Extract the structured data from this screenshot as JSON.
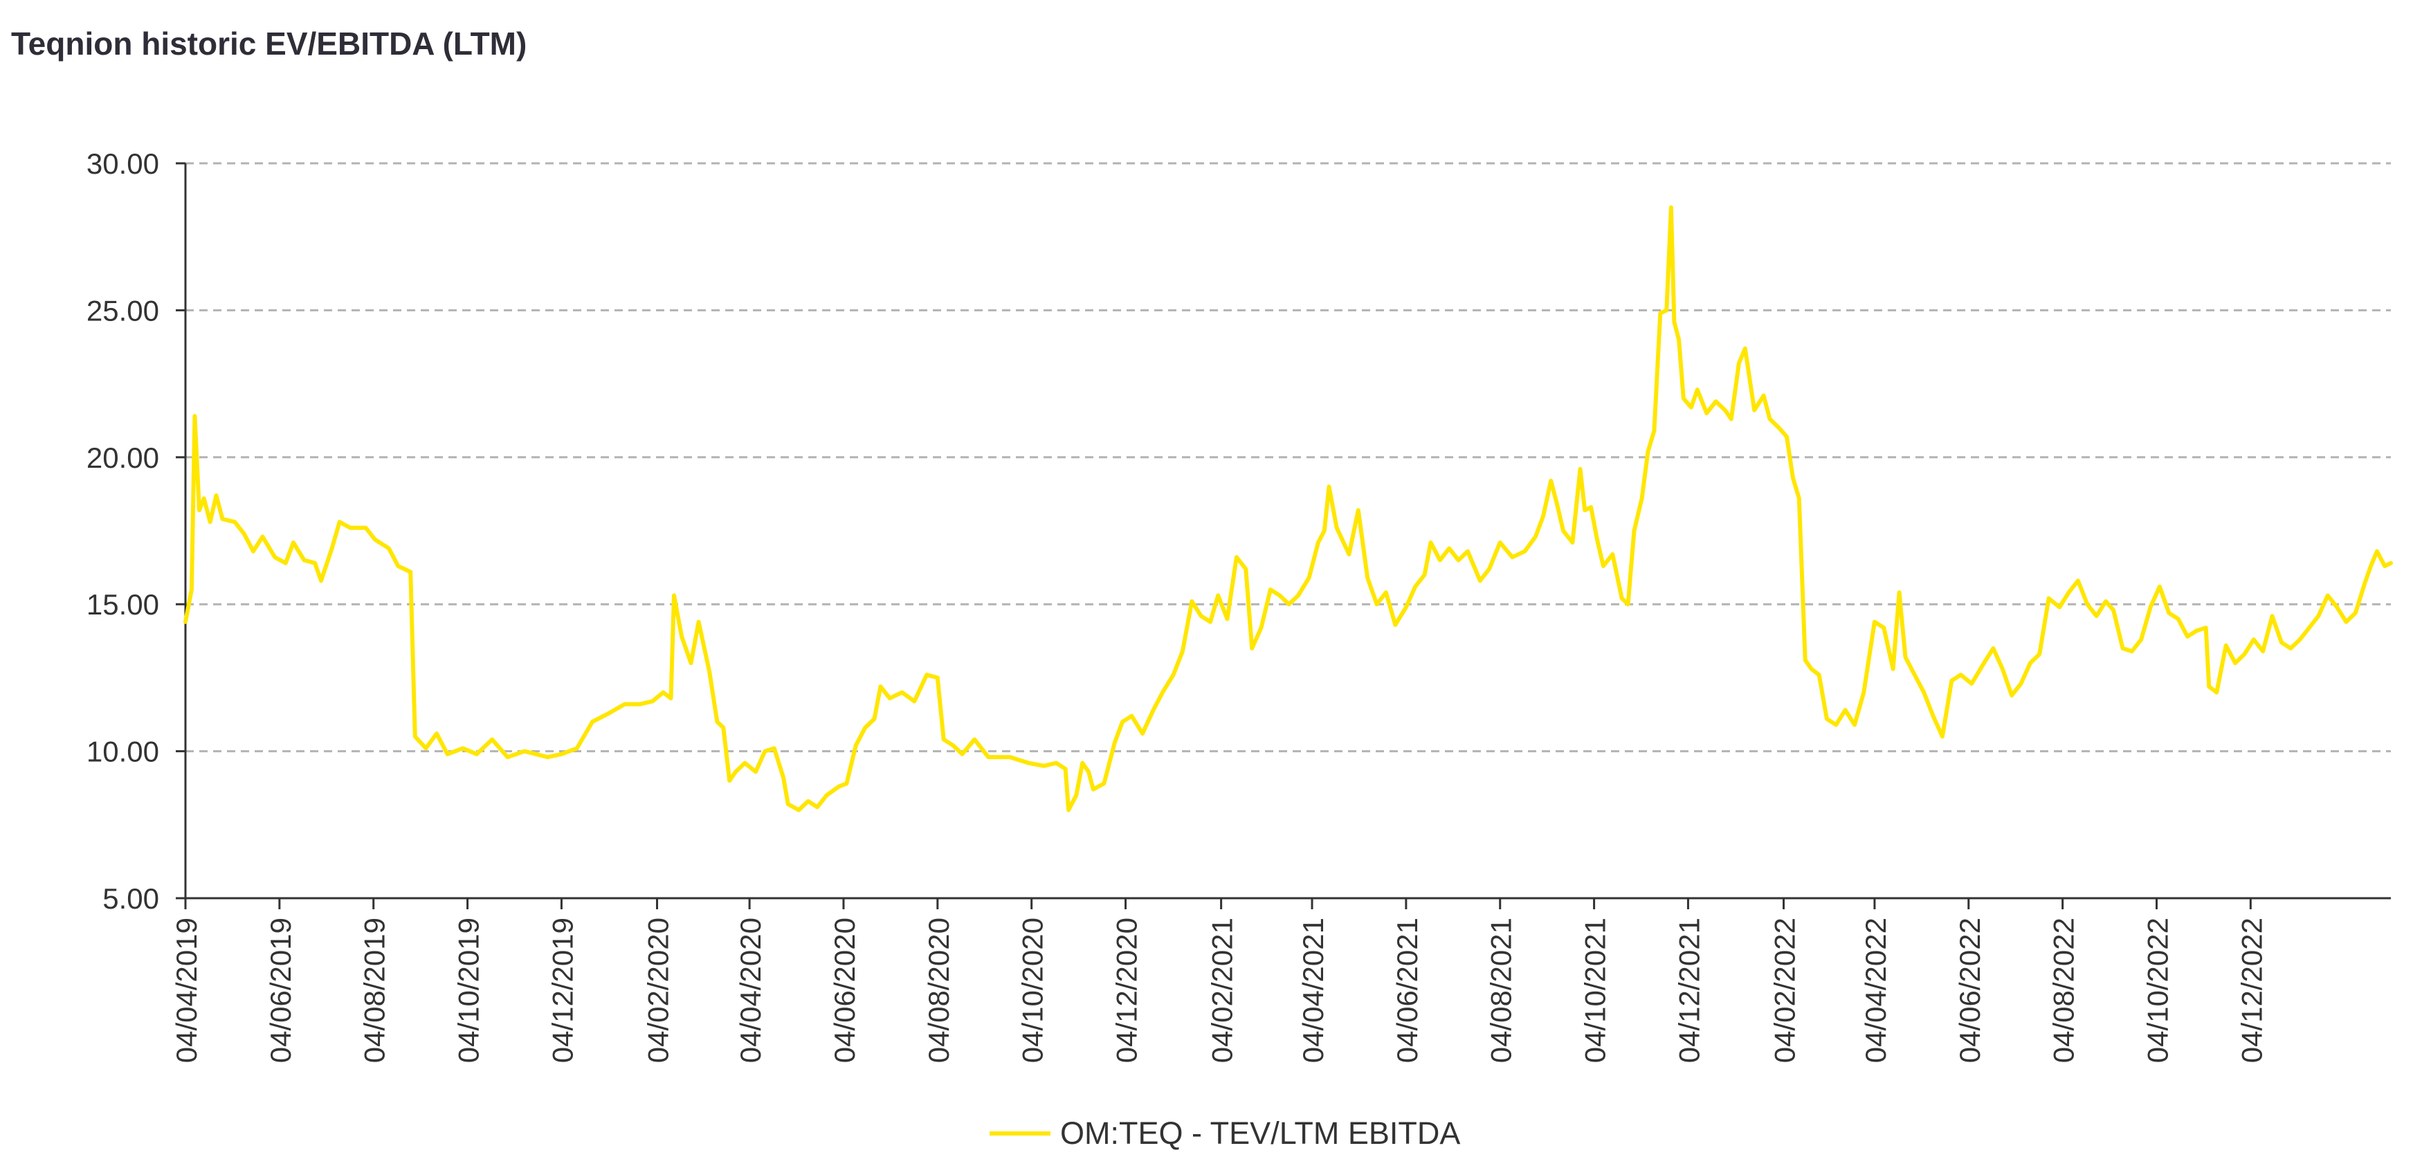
{
  "chart_data": {
    "type": "line",
    "title": "Teqnion historic EV/EBITDA (LTM)",
    "xlabel": "",
    "ylabel": "",
    "ylim": [
      5,
      30
    ],
    "xlim": [
      "2019-04-04",
      "2023-03-05"
    ],
    "grid": true,
    "legend_position": "bottom",
    "y_ticks": [
      "5.00",
      "10.00",
      "15.00",
      "20.00",
      "25.00",
      "30.00"
    ],
    "x_ticks": [
      "04/04/2019",
      "04/06/2019",
      "04/08/2019",
      "04/10/2019",
      "04/12/2019",
      "04/02/2020",
      "04/04/2020",
      "04/06/2020",
      "04/08/2020",
      "04/10/2020",
      "04/12/2020",
      "04/02/2021",
      "04/04/2021",
      "04/06/2021",
      "04/08/2021",
      "04/10/2021",
      "04/12/2021",
      "04/02/2022",
      "04/04/2022",
      "04/06/2022",
      "04/08/2022",
      "04/10/2022",
      "04/12/2022"
    ],
    "series": [
      {
        "name": "OM:TEQ - TEV/LTM EBITDA",
        "color": "#ffe600",
        "points": [
          [
            "2019-04-04",
            14.4
          ],
          [
            "2019-04-08",
            15.5
          ],
          [
            "2019-04-10",
            21.4
          ],
          [
            "2019-04-13",
            18.2
          ],
          [
            "2019-04-16",
            18.6
          ],
          [
            "2019-04-20",
            17.8
          ],
          [
            "2019-04-24",
            18.7
          ],
          [
            "2019-04-28",
            17.9
          ],
          [
            "2019-05-06",
            17.8
          ],
          [
            "2019-05-12",
            17.4
          ],
          [
            "2019-05-18",
            16.8
          ],
          [
            "2019-05-24",
            17.3
          ],
          [
            "2019-06-01",
            16.6
          ],
          [
            "2019-06-08",
            16.4
          ],
          [
            "2019-06-13",
            17.1
          ],
          [
            "2019-06-20",
            16.5
          ],
          [
            "2019-06-27",
            16.4
          ],
          [
            "2019-07-01",
            15.8
          ],
          [
            "2019-07-08",
            16.9
          ],
          [
            "2019-07-13",
            17.8
          ],
          [
            "2019-07-20",
            17.6
          ],
          [
            "2019-07-30",
            17.6
          ],
          [
            "2019-08-05",
            17.2
          ],
          [
            "2019-08-14",
            16.9
          ],
          [
            "2019-08-20",
            16.3
          ],
          [
            "2019-08-28",
            16.1
          ],
          [
            "2019-08-31",
            10.5
          ],
          [
            "2019-09-07",
            10.1
          ],
          [
            "2019-09-14",
            10.6
          ],
          [
            "2019-09-21",
            9.9
          ],
          [
            "2019-10-01",
            10.1
          ],
          [
            "2019-10-10",
            9.9
          ],
          [
            "2019-10-20",
            10.4
          ],
          [
            "2019-10-30",
            9.8
          ],
          [
            "2019-11-10",
            10.0
          ],
          [
            "2019-11-25",
            9.8
          ],
          [
            "2019-12-04",
            9.9
          ],
          [
            "2019-12-14",
            10.1
          ],
          [
            "2019-12-24",
            11.0
          ],
          [
            "2020-01-04",
            11.3
          ],
          [
            "2020-01-14",
            11.6
          ],
          [
            "2020-01-24",
            11.6
          ],
          [
            "2020-02-01",
            11.7
          ],
          [
            "2020-02-08",
            12.0
          ],
          [
            "2020-02-13",
            11.8
          ],
          [
            "2020-02-15",
            15.3
          ],
          [
            "2020-02-20",
            13.9
          ],
          [
            "2020-02-26",
            13.0
          ],
          [
            "2020-03-02",
            14.4
          ],
          [
            "2020-03-09",
            12.7
          ],
          [
            "2020-03-14",
            11.0
          ],
          [
            "2020-03-18",
            10.8
          ],
          [
            "2020-03-22",
            9.0
          ],
          [
            "2020-03-26",
            9.3
          ],
          [
            "2020-04-01",
            9.6
          ],
          [
            "2020-04-08",
            9.3
          ],
          [
            "2020-04-14",
            10.0
          ],
          [
            "2020-04-20",
            10.1
          ],
          [
            "2020-04-26",
            9.1
          ],
          [
            "2020-04-29",
            8.2
          ],
          [
            "2020-05-06",
            8.0
          ],
          [
            "2020-05-12",
            8.3
          ],
          [
            "2020-05-18",
            8.1
          ],
          [
            "2020-05-24",
            8.5
          ],
          [
            "2020-06-01",
            8.8
          ],
          [
            "2020-06-06",
            8.9
          ],
          [
            "2020-06-12",
            10.2
          ],
          [
            "2020-06-18",
            10.8
          ],
          [
            "2020-06-24",
            11.1
          ],
          [
            "2020-06-28",
            12.2
          ],
          [
            "2020-07-04",
            11.8
          ],
          [
            "2020-07-12",
            12.0
          ],
          [
            "2020-07-20",
            11.7
          ],
          [
            "2020-07-28",
            12.6
          ],
          [
            "2020-08-04",
            12.5
          ],
          [
            "2020-08-08",
            10.4
          ],
          [
            "2020-08-14",
            10.2
          ],
          [
            "2020-08-20",
            9.9
          ],
          [
            "2020-08-28",
            10.4
          ],
          [
            "2020-09-06",
            9.8
          ],
          [
            "2020-09-20",
            9.8
          ],
          [
            "2020-10-02",
            9.6
          ],
          [
            "2020-10-12",
            9.5
          ],
          [
            "2020-10-20",
            9.6
          ],
          [
            "2020-10-26",
            9.4
          ],
          [
            "2020-10-28",
            8.0
          ],
          [
            "2020-11-02",
            8.5
          ],
          [
            "2020-11-06",
            9.6
          ],
          [
            "2020-11-10",
            9.3
          ],
          [
            "2020-11-13",
            8.7
          ],
          [
            "2020-11-20",
            8.9
          ],
          [
            "2020-11-27",
            10.3
          ],
          [
            "2020-12-02",
            11.0
          ],
          [
            "2020-12-08",
            11.2
          ],
          [
            "2020-12-15",
            10.6
          ],
          [
            "2020-12-22",
            11.4
          ],
          [
            "2020-12-28",
            12.0
          ],
          [
            "2021-01-04",
            12.6
          ],
          [
            "2021-01-10",
            13.4
          ],
          [
            "2021-01-16",
            15.1
          ],
          [
            "2021-01-22",
            14.6
          ],
          [
            "2021-01-28",
            14.4
          ],
          [
            "2021-02-02",
            15.3
          ],
          [
            "2021-02-08",
            14.5
          ],
          [
            "2021-02-14",
            16.6
          ],
          [
            "2021-02-20",
            16.2
          ],
          [
            "2021-02-24",
            13.5
          ],
          [
            "2021-03-02",
            14.2
          ],
          [
            "2021-03-08",
            15.5
          ],
          [
            "2021-03-14",
            15.3
          ],
          [
            "2021-03-20",
            15.0
          ],
          [
            "2021-03-26",
            15.3
          ],
          [
            "2021-04-02",
            15.9
          ],
          [
            "2021-04-08",
            17.1
          ],
          [
            "2021-04-12",
            17.5
          ],
          [
            "2021-04-15",
            19.0
          ],
          [
            "2021-04-20",
            17.6
          ],
          [
            "2021-04-28",
            16.7
          ],
          [
            "2021-05-04",
            18.2
          ],
          [
            "2021-05-10",
            15.9
          ],
          [
            "2021-05-16",
            15.0
          ],
          [
            "2021-05-22",
            15.4
          ],
          [
            "2021-05-28",
            14.3
          ],
          [
            "2021-06-04",
            14.9
          ],
          [
            "2021-06-10",
            15.6
          ],
          [
            "2021-06-16",
            16.0
          ],
          [
            "2021-06-20",
            17.1
          ],
          [
            "2021-06-26",
            16.5
          ],
          [
            "2021-07-02",
            16.9
          ],
          [
            "2021-07-08",
            16.5
          ],
          [
            "2021-07-14",
            16.8
          ],
          [
            "2021-07-22",
            15.8
          ],
          [
            "2021-07-28",
            16.2
          ],
          [
            "2021-08-04",
            17.1
          ],
          [
            "2021-08-12",
            16.6
          ],
          [
            "2021-08-20",
            16.8
          ],
          [
            "2021-08-27",
            17.3
          ],
          [
            "2021-09-01",
            18.0
          ],
          [
            "2021-09-06",
            19.2
          ],
          [
            "2021-09-10",
            18.4
          ],
          [
            "2021-09-14",
            17.5
          ],
          [
            "2021-09-20",
            17.1
          ],
          [
            "2021-09-25",
            19.6
          ],
          [
            "2021-09-28",
            18.2
          ],
          [
            "2021-10-02",
            18.3
          ],
          [
            "2021-10-06",
            17.2
          ],
          [
            "2021-10-10",
            16.3
          ],
          [
            "2021-10-16",
            16.7
          ],
          [
            "2021-10-22",
            15.2
          ],
          [
            "2021-10-26",
            15.0
          ],
          [
            "2021-10-30",
            17.5
          ],
          [
            "2021-11-04",
            18.6
          ],
          [
            "2021-11-08",
            20.2
          ],
          [
            "2021-11-12",
            20.9
          ],
          [
            "2021-11-16",
            24.9
          ],
          [
            "2021-11-20",
            25.0
          ],
          [
            "2021-11-23",
            28.5
          ],
          [
            "2021-11-25",
            24.6
          ],
          [
            "2021-11-28",
            24.0
          ],
          [
            "2021-12-01",
            22.0
          ],
          [
            "2021-12-06",
            21.7
          ],
          [
            "2021-12-10",
            22.3
          ],
          [
            "2021-12-16",
            21.5
          ],
          [
            "2021-12-22",
            21.9
          ],
          [
            "2021-12-28",
            21.6
          ],
          [
            "2022-01-01",
            21.3
          ],
          [
            "2022-01-06",
            23.2
          ],
          [
            "2022-01-10",
            23.7
          ],
          [
            "2022-01-16",
            21.6
          ],
          [
            "2022-01-22",
            22.1
          ],
          [
            "2022-01-26",
            21.3
          ],
          [
            "2022-02-01",
            21.0
          ],
          [
            "2022-02-06",
            20.7
          ],
          [
            "2022-02-10",
            19.3
          ],
          [
            "2022-02-14",
            18.6
          ],
          [
            "2022-02-18",
            13.1
          ],
          [
            "2022-02-22",
            12.8
          ],
          [
            "2022-02-27",
            12.6
          ],
          [
            "2022-03-04",
            11.1
          ],
          [
            "2022-03-10",
            10.9
          ],
          [
            "2022-03-16",
            11.4
          ],
          [
            "2022-03-22",
            10.9
          ],
          [
            "2022-03-28",
            12.0
          ],
          [
            "2022-04-04",
            14.4
          ],
          [
            "2022-04-10",
            14.2
          ],
          [
            "2022-04-16",
            12.8
          ],
          [
            "2022-04-20",
            15.4
          ],
          [
            "2022-04-24",
            13.2
          ],
          [
            "2022-04-30",
            12.6
          ],
          [
            "2022-05-06",
            12.0
          ],
          [
            "2022-05-12",
            11.2
          ],
          [
            "2022-05-18",
            10.5
          ],
          [
            "2022-05-24",
            12.4
          ],
          [
            "2022-05-30",
            12.6
          ],
          [
            "2022-06-06",
            12.3
          ],
          [
            "2022-06-14",
            13.0
          ],
          [
            "2022-06-20",
            13.5
          ],
          [
            "2022-06-26",
            12.8
          ],
          [
            "2022-07-02",
            11.9
          ],
          [
            "2022-07-08",
            12.3
          ],
          [
            "2022-07-14",
            13.0
          ],
          [
            "2022-07-20",
            13.3
          ],
          [
            "2022-07-26",
            15.2
          ],
          [
            "2022-08-02",
            14.9
          ],
          [
            "2022-08-08",
            15.4
          ],
          [
            "2022-08-14",
            15.8
          ],
          [
            "2022-08-20",
            15.0
          ],
          [
            "2022-08-26",
            14.6
          ],
          [
            "2022-09-01",
            15.1
          ],
          [
            "2022-09-06",
            14.8
          ],
          [
            "2022-09-12",
            13.5
          ],
          [
            "2022-09-18",
            13.4
          ],
          [
            "2022-09-24",
            13.8
          ],
          [
            "2022-09-30",
            14.9
          ],
          [
            "2022-10-06",
            15.6
          ],
          [
            "2022-10-12",
            14.7
          ],
          [
            "2022-10-18",
            14.5
          ],
          [
            "2022-10-24",
            13.9
          ],
          [
            "2022-10-30",
            14.1
          ],
          [
            "2022-11-05",
            14.2
          ],
          [
            "2022-11-07",
            12.2
          ],
          [
            "2022-11-12",
            12.0
          ],
          [
            "2022-11-18",
            13.6
          ],
          [
            "2022-11-24",
            13.0
          ],
          [
            "2022-11-30",
            13.3
          ],
          [
            "2022-12-06",
            13.8
          ],
          [
            "2022-12-12",
            13.4
          ],
          [
            "2022-12-18",
            14.6
          ],
          [
            "2022-12-24",
            13.7
          ],
          [
            "2022-12-30",
            13.5
          ],
          [
            "2023-01-05",
            13.8
          ],
          [
            "2023-01-11",
            14.2
          ],
          [
            "2023-01-17",
            14.6
          ],
          [
            "2023-01-23",
            15.3
          ],
          [
            "2023-01-29",
            14.9
          ],
          [
            "2023-02-04",
            14.4
          ],
          [
            "2023-02-10",
            14.7
          ],
          [
            "2023-02-16",
            15.7
          ],
          [
            "2023-02-20",
            16.3
          ],
          [
            "2023-02-24",
            16.8
          ],
          [
            "2023-03-01",
            16.3
          ],
          [
            "2023-03-05",
            16.4
          ]
        ]
      }
    ]
  }
}
